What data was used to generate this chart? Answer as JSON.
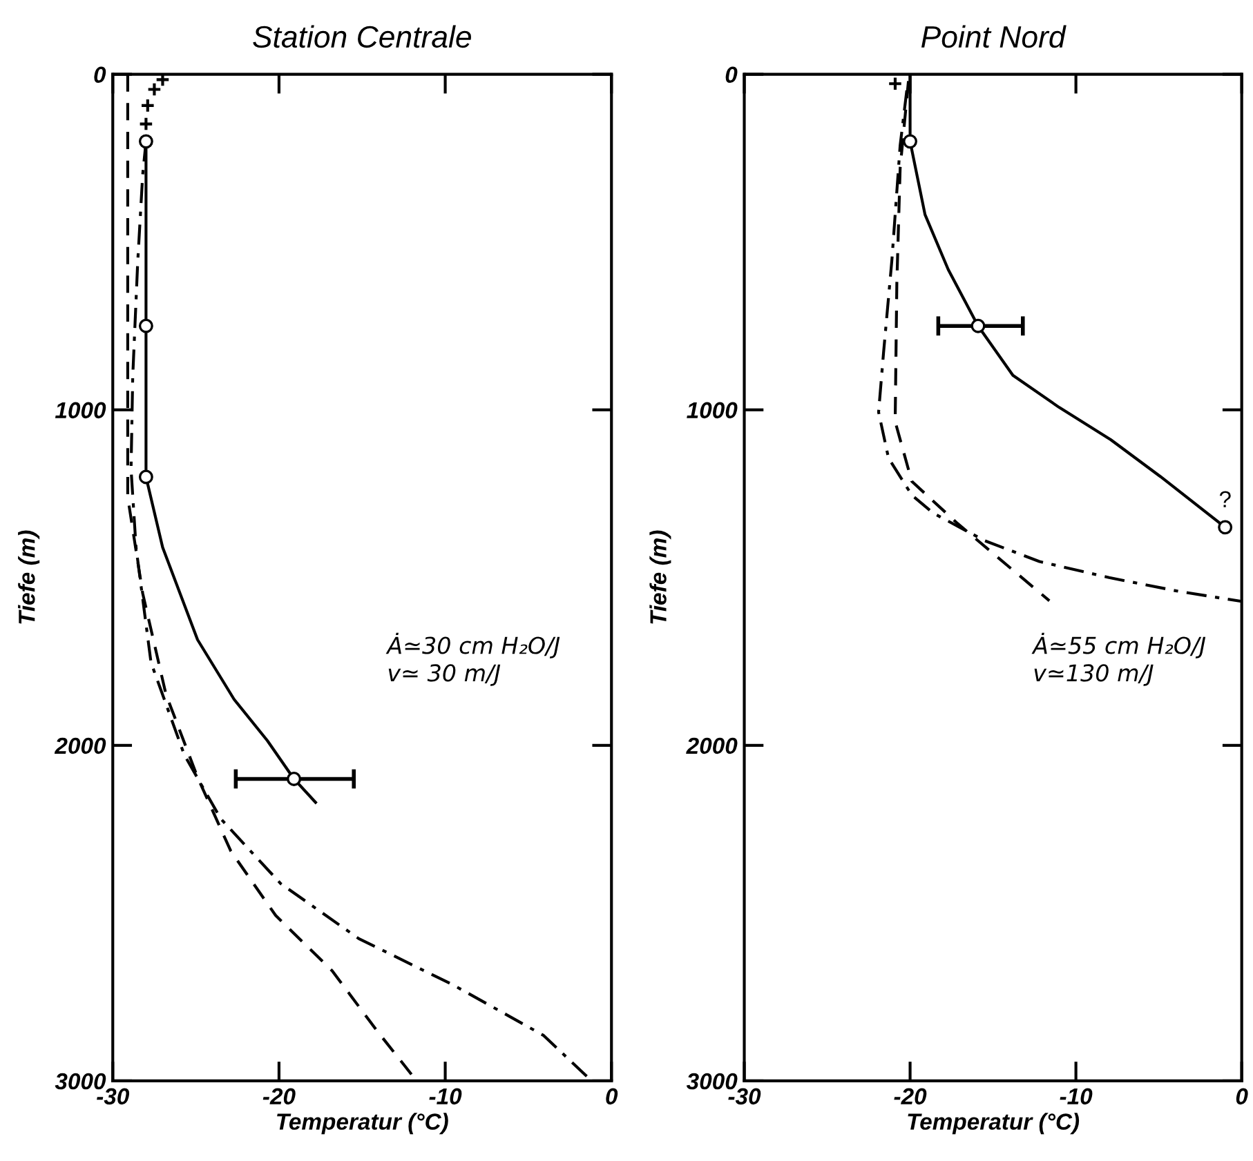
{
  "chart_data": [
    {
      "type": "line",
      "title": "Station Centrale",
      "xlabel": "Temperatur (°C)",
      "ylabel": "Tiefe (m)",
      "xlim": [
        -30,
        0
      ],
      "ylim": [
        3000,
        0
      ],
      "xticks": [
        -30,
        -20,
        -10,
        0
      ],
      "yticks": [
        0,
        1000,
        2000,
        3000
      ],
      "grid": false,
      "annotations": [
        "Ȧ≃30 cm H₂O/J\nv≃ 30 m/J"
      ],
      "series": [
        {
          "color": "#000000",
          "line_style": "solid",
          "marker": "none",
          "x": [
            -28.0,
            -28.0,
            -28.0,
            -27.0,
            -24.9,
            -22.7,
            -20.7,
            -19.1,
            -17.8
          ],
          "values": [
            200,
            750,
            1200,
            1410,
            1685,
            1863,
            1986,
            2100,
            2170
          ]
        },
        {
          "type": "scatter",
          "color": "#000000",
          "marker": "circle",
          "x": [
            -28.0,
            -28.0,
            -28.0,
            -19.1
          ],
          "values": [
            200,
            750,
            1200,
            2100
          ],
          "xerrors": [
            null,
            null,
            null,
            [
              -22.6,
              -15.5
            ]
          ]
        },
        {
          "type": "scatter",
          "color": "#000000",
          "marker": "cross",
          "x": [
            -27.0,
            -27.5,
            -27.9,
            -28.0
          ],
          "values": [
            16,
            45,
            93,
            148
          ]
        },
        {
          "color": "#000000",
          "line_style": "dashed",
          "marker": "none",
          "x": [
            -29.1,
            -29.1,
            -28.2,
            -26.8,
            -24.9,
            -22.9,
            -20.2,
            -16.8,
            -14.1,
            -11.8
          ],
          "values": [
            0,
            1260,
            1547,
            1848,
            2095,
            2315,
            2507,
            2672,
            2851,
            2995
          ]
        },
        {
          "color": "#000000",
          "line_style": "dashdot",
          "marker": "none",
          "x": [
            -28.0,
            -28.2,
            -28.5,
            -28.8,
            -28.9,
            -28.6,
            -27.7,
            -25.7,
            -23.5,
            -19.9,
            -15.2,
            -9.6,
            -4.1,
            -1.3
          ],
          "values": [
            200,
            299,
            560,
            902,
            1177,
            1410,
            1753,
            2028,
            2219,
            2412,
            2576,
            2712,
            2864,
            2995
          ]
        }
      ]
    },
    {
      "type": "line",
      "title": "Point Nord",
      "xlabel": "Temperatur (°C)",
      "ylabel": "Tiefe (m)",
      "xlim": [
        -30,
        0
      ],
      "ylim": [
        3000,
        0
      ],
      "xticks": [
        -30,
        -20,
        -10,
        0
      ],
      "yticks": [
        0,
        1000,
        2000,
        3000
      ],
      "grid": false,
      "annotations": [
        "Ȧ≃55 cm H₂O/J\nv≃130 m/J",
        {
          "text": "?",
          "x": -1.0,
          "y": 1350
        }
      ],
      "series": [
        {
          "color": "#000000",
          "line_style": "solid",
          "marker": "none",
          "x": [
            -20.0,
            -20.0,
            -19.1,
            -17.7,
            -15.9,
            -13.8,
            -11.0,
            -7.9,
            -4.9,
            -1.0
          ],
          "values": [
            0,
            200,
            418,
            582,
            750,
            897,
            993,
            1089,
            1199,
            1350
          ]
        },
        {
          "type": "scatter",
          "color": "#000000",
          "marker": "circle",
          "x": [
            -20.0,
            -15.9,
            -1.0
          ],
          "values": [
            200,
            750,
            1350
          ],
          "xerrors": [
            null,
            [
              -18.3,
              -13.2
            ],
            null
          ]
        },
        {
          "type": "scatter",
          "color": "#000000",
          "marker": "cross",
          "x": [
            -20.9
          ],
          "values": [
            28
          ]
        },
        {
          "color": "#000000",
          "line_style": "dashed",
          "marker": "none",
          "x": [
            -20.1,
            -20.6,
            -20.8,
            -20.9,
            -19.9,
            -17.2,
            -14.9,
            -11.6
          ],
          "values": [
            20,
            280,
            623,
            1035,
            1213,
            1336,
            1432,
            1569
          ]
        },
        {
          "color": "#000000",
          "line_style": "dashdot",
          "marker": "none",
          "x": [
            -20.2,
            -20.6,
            -21.1,
            -21.6,
            -21.9,
            -21.3,
            -19.9,
            -18.6,
            -15.5,
            -12.2,
            -8.0,
            -3.8,
            0.0
          ],
          "values": [
            48,
            212,
            555,
            829,
            1007,
            1144,
            1254,
            1308,
            1390,
            1452,
            1500,
            1541,
            1571
          ]
        }
      ]
    }
  ]
}
